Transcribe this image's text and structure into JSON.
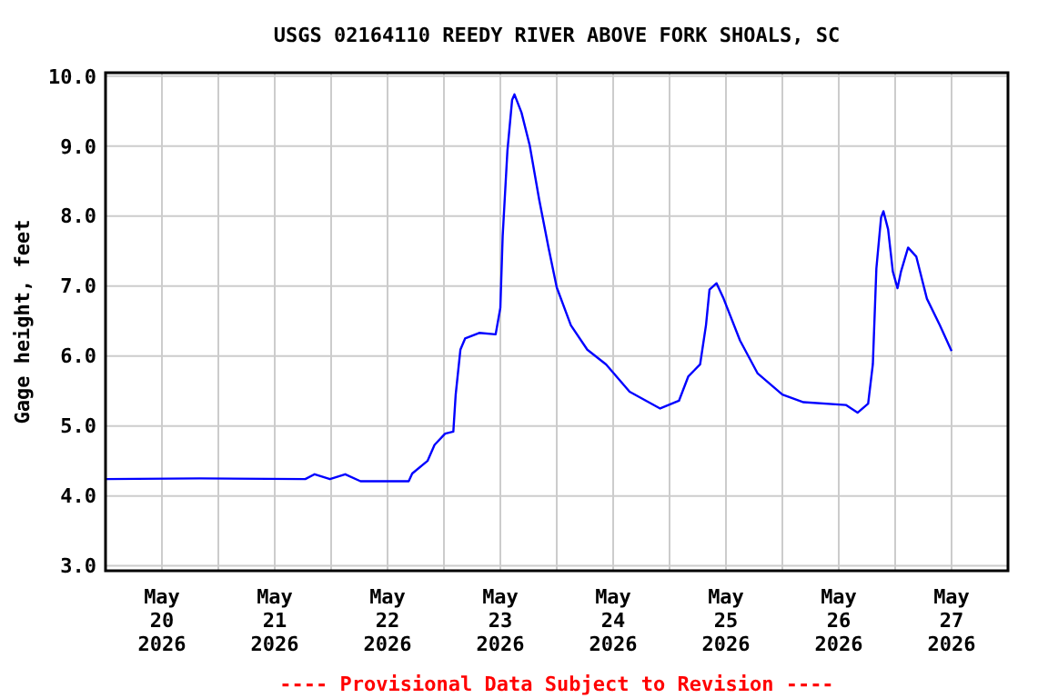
{
  "chart_data": {
    "type": "line",
    "title": "USGS 02164110 REEDY RIVER ABOVE FORK SHOALS, SC",
    "ylabel": "Gage height, feet",
    "annotations": [
      "---- Provisional Data Subject to Revision ----"
    ],
    "xlim": [
      "2026-05-20T00:00",
      "2026-05-28T00:00"
    ],
    "xticks": [
      {
        "value": "2026-05-20T12:00",
        "label": "May\n20\n2026"
      },
      {
        "value": "2026-05-21T12:00",
        "label": "May\n21\n2026"
      },
      {
        "value": "2026-05-22T12:00",
        "label": "May\n22\n2026"
      },
      {
        "value": "2026-05-23T12:00",
        "label": "May\n23\n2026"
      },
      {
        "value": "2026-05-24T12:00",
        "label": "May\n24\n2026"
      },
      {
        "value": "2026-05-25T12:00",
        "label": "May\n25\n2026"
      },
      {
        "value": "2026-05-26T12:00",
        "label": "May\n26\n2026"
      },
      {
        "value": "2026-05-27T12:00",
        "label": "May\n27\n2026"
      },
      {
        "value": "2026-05-21T00:00",
        "label": null
      },
      {
        "value": "2026-05-22T00:00",
        "label": null
      },
      {
        "value": "2026-05-23T00:00",
        "label": null
      },
      {
        "value": "2026-05-24T00:00",
        "label": null
      },
      {
        "value": "2026-05-25T00:00",
        "label": null
      },
      {
        "value": "2026-05-26T00:00",
        "label": null
      },
      {
        "value": "2026-05-27T00:00",
        "label": null
      }
    ],
    "ylim": [
      2.93,
      10.05
    ],
    "yticks": [
      {
        "value": 3,
        "label": "3.0"
      },
      {
        "value": 4,
        "label": "4.0"
      },
      {
        "value": 5,
        "label": "5.0"
      },
      {
        "value": 6,
        "label": "6.0"
      },
      {
        "value": 7,
        "label": "7.0"
      },
      {
        "value": 8,
        "label": "8.0"
      },
      {
        "value": 9,
        "label": "9.0"
      },
      {
        "value": 10,
        "label": "10.0"
      }
    ],
    "grid": true,
    "marker": "none",
    "line_style": "solid",
    "x": [
      "2026-05-20T00:00",
      "2026-05-20T20:00",
      "2026-05-21T18:30",
      "2026-05-21T20:30",
      "2026-05-21T23:45",
      "2026-05-22T03:00",
      "2026-05-22T06:15",
      "2026-05-22T16:30",
      "2026-05-22T17:15",
      "2026-05-22T20:30",
      "2026-05-22T22:00",
      "2026-05-23T00:15",
      "2026-05-23T02:00",
      "2026-05-23T02:30",
      "2026-05-23T03:30",
      "2026-05-23T04:30",
      "2026-05-23T07:30",
      "2026-05-23T11:00",
      "2026-05-23T12:00",
      "2026-05-23T12:30",
      "2026-05-23T13:30",
      "2026-05-23T14:30",
      "2026-05-23T15:00",
      "2026-05-23T16:30",
      "2026-05-23T18:15",
      "2026-05-23T20:15",
      "2026-05-23T22:15",
      "2026-05-24T00:00",
      "2026-05-24T03:00",
      "2026-05-24T06:30",
      "2026-05-24T10:30",
      "2026-05-24T15:30",
      "2026-05-24T22:00",
      "2026-05-25T02:00",
      "2026-05-25T04:00",
      "2026-05-25T06:30",
      "2026-05-25T07:45",
      "2026-05-25T08:30",
      "2026-05-25T10:00",
      "2026-05-25T11:30",
      "2026-05-25T15:00",
      "2026-05-25T18:45",
      "2026-05-26T00:00",
      "2026-05-26T04:30",
      "2026-05-26T13:30",
      "2026-05-26T16:00",
      "2026-05-26T18:15",
      "2026-05-26T19:15",
      "2026-05-26T20:00",
      "2026-05-26T21:00",
      "2026-05-26T21:30",
      "2026-05-26T22:30",
      "2026-05-26T23:30",
      "2026-05-27T00:30",
      "2026-05-27T01:15",
      "2026-05-27T02:45",
      "2026-05-27T04:30",
      "2026-05-27T06:45",
      "2026-05-27T09:30",
      "2026-05-27T12:00"
    ],
    "series": [
      {
        "color": "#0000ff",
        "values": [
          4.24,
          4.25,
          4.24,
          4.31,
          4.24,
          4.31,
          4.21,
          4.21,
          4.32,
          4.5,
          4.73,
          4.89,
          4.92,
          5.45,
          6.09,
          6.25,
          6.33,
          6.31,
          6.69,
          7.72,
          8.93,
          9.66,
          9.74,
          9.48,
          9.01,
          8.24,
          7.55,
          6.98,
          6.44,
          6.09,
          5.88,
          5.49,
          5.25,
          5.36,
          5.71,
          5.88,
          6.44,
          6.95,
          7.04,
          6.82,
          6.22,
          5.75,
          5.45,
          5.34,
          5.3,
          5.19,
          5.32,
          5.88,
          7.25,
          7.98,
          8.07,
          7.81,
          7.21,
          6.97,
          7.21,
          7.55,
          7.42,
          6.82,
          6.44,
          6.07
        ]
      }
    ]
  }
}
